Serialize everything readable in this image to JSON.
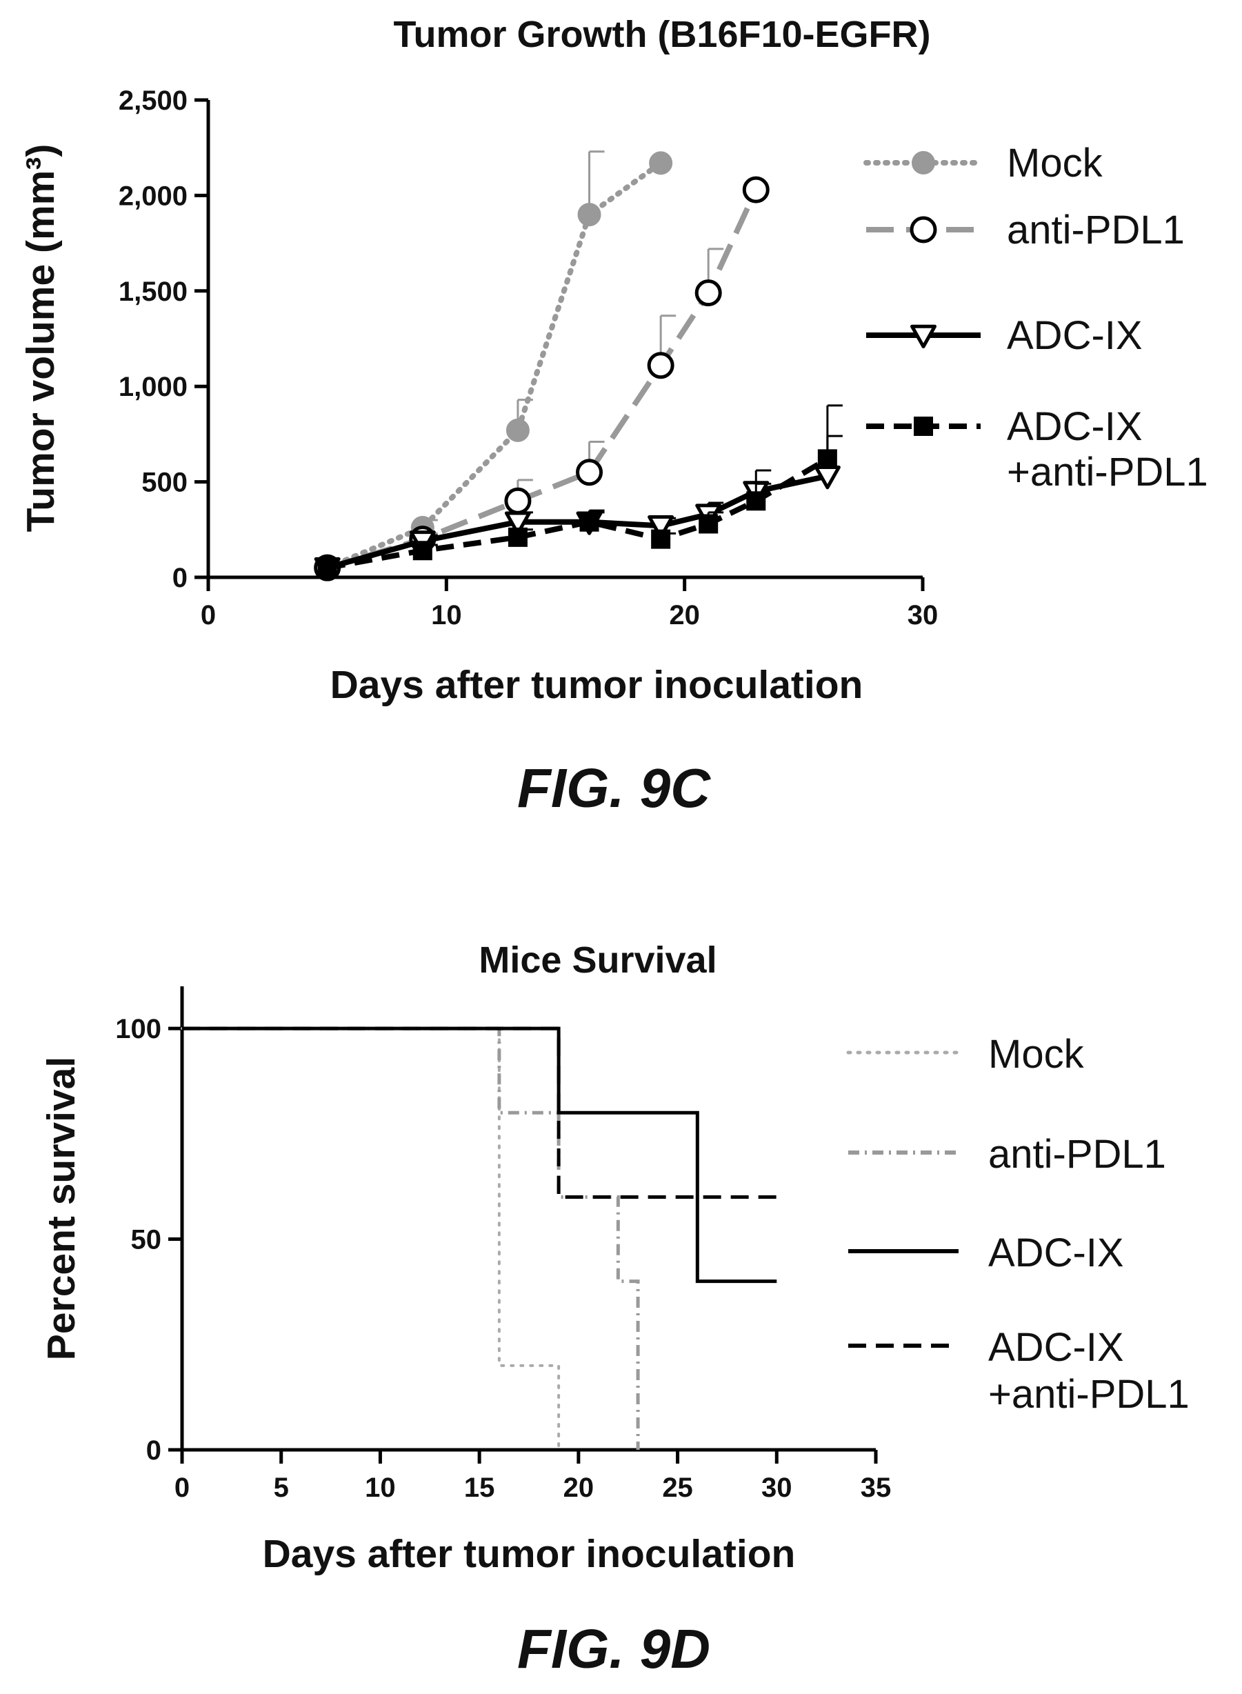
{
  "figures": [
    {
      "label": "FIG. 9C"
    },
    {
      "label": "FIG. 9D"
    }
  ],
  "chart_data": [
    {
      "type": "line",
      "title": "Tumor Growth (B16F10-EGFR)",
      "xlabel": "Days after tumor inoculation",
      "ylabel": "Tumor volume (mm³)",
      "xlim": [
        0,
        30
      ],
      "ylim": [
        0,
        2500
      ],
      "xticks": [
        "0",
        "10",
        "20",
        "30"
      ],
      "yticks": [
        "0",
        "500",
        "1,000",
        "1,500",
        "2,000",
        "2,500"
      ],
      "legend_position": "right",
      "series": [
        {
          "name": "Mock",
          "color": "#999999",
          "marker": "filled-circle",
          "line": "dotted",
          "x": [
            5,
            9,
            13,
            16,
            19
          ],
          "y": [
            50,
            260,
            770,
            1900,
            2170
          ],
          "err": [
            10,
            40,
            160,
            330,
            0
          ]
        },
        {
          "name": "anti-PDL1",
          "color": "#999999",
          "marker": "open-circle",
          "line": "long-dash",
          "x": [
            5,
            9,
            13,
            16,
            19,
            21,
            23
          ],
          "y": [
            50,
            200,
            400,
            550,
            1110,
            1490,
            2030
          ],
          "err": [
            10,
            30,
            110,
            160,
            260,
            230,
            0
          ]
        },
        {
          "name": "ADC-IX",
          "color": "#000000",
          "marker": "open-triangle-down",
          "line": "solid",
          "x": [
            5,
            9,
            13,
            16,
            19,
            21,
            23,
            26
          ],
          "y": [
            50,
            190,
            290,
            290,
            270,
            330,
            450,
            530
          ],
          "err": [
            10,
            30,
            50,
            60,
            40,
            60,
            110,
            210
          ]
        },
        {
          "name": "ADC-IX\n+anti-PDL1",
          "color": "#000000",
          "marker": "filled-square",
          "line": "dashed",
          "x": [
            5,
            9,
            13,
            16,
            19,
            21,
            23,
            26
          ],
          "y": [
            50,
            140,
            210,
            290,
            200,
            280,
            400,
            620
          ],
          "err": [
            10,
            30,
            40,
            50,
            30,
            60,
            90,
            280
          ]
        }
      ]
    },
    {
      "type": "line",
      "title": "Mice Survival",
      "xlabel": "Days after tumor inoculation",
      "ylabel": "Percent survival",
      "xlim": [
        0,
        35
      ],
      "ylim": [
        0,
        110
      ],
      "xticks": [
        "0",
        "5",
        "10",
        "15",
        "20",
        "25",
        "30",
        "35"
      ],
      "yticks": [
        "0",
        "50",
        "100"
      ],
      "legend_position": "right",
      "series": [
        {
          "name": "Mock",
          "color": "#aaaaaa",
          "line": "dotted",
          "step": true,
          "x": [
            0,
            16,
            19
          ],
          "y": [
            100,
            20,
            0
          ]
        },
        {
          "name": "anti-PDL1",
          "color": "#999999",
          "line": "dash-dot",
          "step": true,
          "x": [
            0,
            16,
            19,
            22,
            23
          ],
          "y": [
            100,
            80,
            60,
            40,
            0
          ]
        },
        {
          "name": "ADC-IX",
          "color": "#000000",
          "line": "solid",
          "step": true,
          "x": [
            0,
            19,
            26,
            30
          ],
          "y": [
            100,
            80,
            40,
            40
          ]
        },
        {
          "name": "ADC-IX\n+anti-PDL1",
          "color": "#000000",
          "line": "dashed",
          "step": true,
          "x": [
            0,
            19,
            30
          ],
          "y": [
            100,
            60,
            60
          ]
        }
      ]
    }
  ]
}
